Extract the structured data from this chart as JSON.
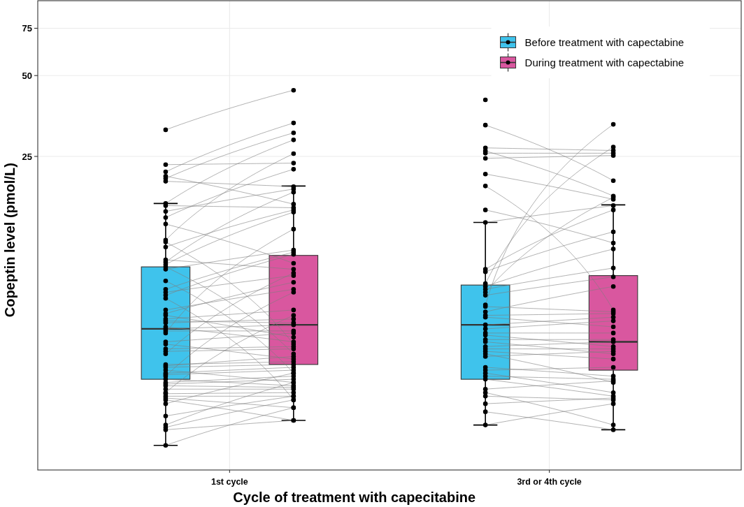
{
  "chart_data": {
    "type": "box",
    "categories": [
      "1st cycle",
      "3rd or 4th cycle"
    ],
    "xlabel": "Cycle of treatment with capecitabine",
    "ylabel": "Copeptin level (pmol/L)",
    "log": true,
    "ylim": [
      1.7,
      95
    ],
    "yticks": [
      25,
      50,
      75
    ],
    "grid": true,
    "legend": "top right",
    "series": [
      {
        "name": "Before treatment with capectabine",
        "color": "#3fc3ec",
        "boxes": [
          {
            "low": 2.1,
            "q1": 3.7,
            "median": 5.7,
            "q3": 9.7,
            "high": 16.7
          },
          {
            "low": 2.5,
            "q1": 3.7,
            "median": 5.9,
            "q3": 8.3,
            "high": 14.2
          }
        ]
      },
      {
        "name": "During treatment with capectabine",
        "color": "#d9579f",
        "boxes": [
          {
            "low": 2.6,
            "q1": 4.2,
            "median": 5.9,
            "q3": 10.7,
            "high": 19.4
          },
          {
            "low": 2.4,
            "q1": 4.0,
            "median": 5.1,
            "q3": 9.0,
            "high": 16.5
          }
        ]
      },
      {
        "type": "scatter",
        "color": "#000000",
        "x": [
          "1st cycle",
          "1st cycle",
          "1st cycle",
          "1st cycle",
          "1st cycle",
          "1st cycle",
          "1st cycle",
          "1st cycle",
          "1st cycle",
          "1st cycle",
          "1st cycle",
          "1st cycle",
          "1st cycle",
          "1st cycle",
          "1st cycle",
          "1st cycle",
          "1st cycle",
          "1st cycle",
          "1st cycle",
          "1st cycle",
          "1st cycle",
          "1st cycle",
          "1st cycle",
          "1st cycle",
          "1st cycle",
          "1st cycle",
          "1st cycle",
          "1st cycle",
          "1st cycle",
          "1st cycle",
          "1st cycle",
          "1st cycle",
          "1st cycle",
          "1st cycle",
          "1st cycle",
          "1st cycle",
          "1st cycle",
          "1st cycle",
          "1st cycle",
          "1st cycle",
          "1st cycle",
          "1st cycle",
          "1st cycle",
          "1st cycle",
          "1st cycle",
          "1st cycle",
          "1st cycle",
          "1st cycle",
          "1st cycle",
          "1st cycle",
          "1st cycle",
          "1st cycle",
          "1st cycle",
          "1st cycle",
          "1st cycle",
          "1st cycle",
          "1st cycle",
          "1st cycle",
          "1st cycle",
          "1st cycle",
          "1st cycle",
          "1st cycle",
          "3rd or 4th cycle",
          "3rd or 4th cycle",
          "3rd or 4th cycle",
          "3rd or 4th cycle",
          "3rd or 4th cycle",
          "3rd or 4th cycle",
          "3rd or 4th cycle",
          "3rd or 4th cycle",
          "3rd or 4th cycle",
          "3rd or 4th cycle",
          "3rd or 4th cycle",
          "3rd or 4th cycle",
          "3rd or 4th cycle",
          "3rd or 4th cycle",
          "3rd or 4th cycle",
          "3rd or 4th cycle",
          "3rd or 4th cycle",
          "3rd or 4th cycle",
          "3rd or 4th cycle",
          "3rd or 4th cycle",
          "3rd or 4th cycle",
          "3rd or 4th cycle",
          "3rd or 4th cycle",
          "3rd or 4th cycle",
          "3rd or 4th cycle",
          "3rd or 4th cycle",
          "3rd or 4th cycle",
          "3rd or 4th cycle",
          "3rd or 4th cycle",
          "3rd or 4th cycle",
          "3rd or 4th cycle",
          "3rd or 4th cycle",
          "3rd or 4th cycle",
          "3rd or 4th cycle",
          "3rd or 4th cycle",
          "3rd or 4th cycle",
          "3rd or 4th cycle",
          "3rd or 4th cycle",
          "3rd or 4th cycle",
          "3rd or 4th cycle",
          "3rd or 4th cycle",
          "3rd or 4th cycle",
          "3rd or 4th cycle",
          "3rd or 4th cycle"
        ],
        "values": [
          31.4,
          23.3,
          21.9,
          21.1,
          20.7,
          20.2,
          16.7,
          16.4,
          15.6,
          14.8,
          14.0,
          12.2,
          12.0,
          11.5,
          10.3,
          10.1,
          9.9,
          9.7,
          9.5,
          8.6,
          8.0,
          7.8,
          7.6,
          7.4,
          6.7,
          6.5,
          6.4,
          6.2,
          6.1,
          6.0,
          5.8,
          5.7,
          5.6,
          5.5,
          5.1,
          5.0,
          4.8,
          4.7,
          4.6,
          4.2,
          4.15,
          4.1,
          4.0,
          3.9,
          3.85,
          3.8,
          3.7,
          3.6,
          3.55,
          3.5,
          3.4,
          3.3,
          3.27,
          3.2,
          3.15,
          3.1,
          3.0,
          2.7,
          2.5,
          2.45,
          2.4,
          2.1,
          40.6,
          32.7,
          26.9,
          26.2,
          25.7,
          24.6,
          21.5,
          19.4,
          15.8,
          14.2,
          9.5,
          9.3,
          8.4,
          8.2,
          8.0,
          7.8,
          7.6,
          7.0,
          6.9,
          6.6,
          6.4,
          6.3,
          5.9,
          5.7,
          5.5,
          5.4,
          5.2,
          5.1,
          4.9,
          4.8,
          4.7,
          4.6,
          4.5,
          4.1,
          4.0,
          3.9,
          3.8,
          3.7,
          3.4,
          3.3,
          3.2,
          3.0,
          2.8,
          2.5
        ]
      },
      {
        "type": "scatter",
        "color": "#000000",
        "x": [
          "1st cycle",
          "1st cycle",
          "1st cycle",
          "1st cycle",
          "1st cycle",
          "1st cycle",
          "1st cycle",
          "1st cycle",
          "1st cycle",
          "1st cycle",
          "1st cycle",
          "1st cycle",
          "1st cycle",
          "1st cycle",
          "1st cycle",
          "1st cycle",
          "1st cycle",
          "1st cycle",
          "1st cycle",
          "1st cycle",
          "1st cycle",
          "1st cycle",
          "1st cycle",
          "1st cycle",
          "1st cycle",
          "1st cycle",
          "1st cycle",
          "1st cycle",
          "1st cycle",
          "1st cycle",
          "1st cycle",
          "1st cycle",
          "1st cycle",
          "1st cycle",
          "1st cycle",
          "1st cycle",
          "1st cycle",
          "1st cycle",
          "1st cycle",
          "1st cycle",
          "1st cycle",
          "1st cycle",
          "1st cycle",
          "1st cycle",
          "1st cycle",
          "1st cycle",
          "1st cycle",
          "1st cycle",
          "1st cycle",
          "1st cycle",
          "1st cycle",
          "1st cycle",
          "1st cycle",
          "1st cycle",
          "1st cycle",
          "1st cycle",
          "1st cycle",
          "1st cycle",
          "1st cycle",
          "1st cycle",
          "1st cycle",
          "1st cycle",
          "3rd or 4th cycle",
          "3rd or 4th cycle",
          "3rd or 4th cycle",
          "3rd or 4th cycle",
          "3rd or 4th cycle",
          "3rd or 4th cycle",
          "3rd or 4th cycle",
          "3rd or 4th cycle",
          "3rd or 4th cycle",
          "3rd or 4th cycle",
          "3rd or 4th cycle",
          "3rd or 4th cycle",
          "3rd or 4th cycle",
          "3rd or 4th cycle",
          "3rd or 4th cycle",
          "3rd or 4th cycle",
          "3rd or 4th cycle",
          "3rd or 4th cycle",
          "3rd or 4th cycle",
          "3rd or 4th cycle",
          "3rd or 4th cycle",
          "3rd or 4th cycle",
          "3rd or 4th cycle",
          "3rd or 4th cycle",
          "3rd or 4th cycle",
          "3rd or 4th cycle",
          "3rd or 4th cycle",
          "3rd or 4th cycle",
          "3rd or 4th cycle",
          "3rd or 4th cycle",
          "3rd or 4th cycle",
          "3rd or 4th cycle",
          "3rd or 4th cycle",
          "3rd or 4th cycle",
          "3rd or 4th cycle",
          "3rd or 4th cycle",
          "3rd or 4th cycle",
          "3rd or 4th cycle",
          "3rd or 4th cycle",
          "3rd or 4th cycle",
          "3rd or 4th cycle",
          "3rd or 4th cycle",
          "3rd or 4th cycle",
          "3rd or 4th cycle"
        ],
        "values": [
          44.1,
          23.6,
          33.3,
          16.6,
          30.6,
          19.3,
          28.8,
          16.1,
          18.9,
          22.4,
          10.0,
          25.6,
          5.0,
          15.8,
          9.5,
          18.4,
          15.5,
          4.6,
          11.2,
          3.9,
          11.0,
          9.0,
          10.8,
          3.1,
          8.0,
          8.5,
          5.3,
          6.7,
          6.0,
          6.2,
          5.1,
          5.9,
          5.6,
          13.4,
          5.5,
          4.4,
          4.9,
          4.8,
          9.2,
          4.3,
          4.5,
          4.2,
          3.6,
          4.1,
          4.0,
          7.8,
          3.5,
          3.8,
          3.7,
          3.45,
          3.4,
          6.4,
          3.3,
          3.2,
          2.9,
          2.6,
          3.9,
          3.2,
          3.6,
          3.1,
          2.6,
          2.9,
          null,
          20.3,
          26.3,
          17.8,
          25.7,
          25.2,
          17.3,
          6.7,
          11.9,
          16.4,
          15.8,
          13.1,
          27.1,
          11.3,
          9.6,
          17.6,
          8.9,
          32.9,
          6.6,
          8.2,
          6.5,
          5.8,
          6.3,
          6.1,
          5.5,
          4.9,
          5.2,
          4.6,
          5.1,
          4.8,
          4.4,
          3.6,
          4.7,
          3.8,
          4.1,
          3.3,
          3.7,
          3.2,
          3.65,
          2.5,
          3.1,
          3.15,
          2.4,
          3.0
        ]
      }
    ]
  }
}
